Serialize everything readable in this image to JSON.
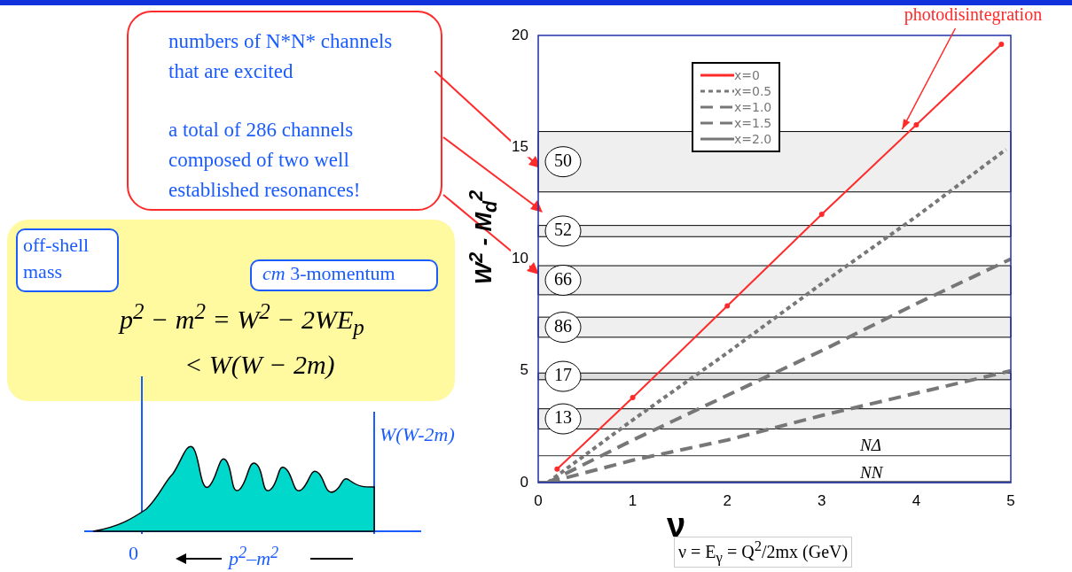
{
  "chart_data": {
    "type": "line",
    "xlabel": "ν = E$_{γ}$ = Q$^{2}$/2mx (GeV)",
    "ylabel": "W$^{2}$ - M$_{d}$$^{2}$",
    "xlim": [
      0,
      5
    ],
    "xticks": [
      0,
      1,
      2,
      3,
      4,
      5
    ],
    "ylim": [
      0,
      20
    ],
    "yticks": [
      0,
      5,
      10,
      15,
      20
    ],
    "grid": false,
    "legend": "top left",
    "marker": "none",
    "series": [
      {
        "name": "x=0",
        "color": "#ff2a2a",
        "line_style": "solid",
        "marker": "circle",
        "x": [
          0.2,
          1,
          2,
          3,
          4,
          4.9
        ],
        "values": [
          0.6,
          3.8,
          7.9,
          12,
          16,
          19.6
        ]
      },
      {
        "name": "x=0.5",
        "color": "#777777",
        "line_style": "dotted",
        "x": [
          0.1,
          1,
          2,
          3,
          4,
          4.95
        ],
        "values": [
          0,
          2.8,
          5.8,
          8.9,
          11.9,
          14.9
        ]
      },
      {
        "name": "x=1.0",
        "color": "#777777",
        "line_style": "dashed",
        "x": [
          0.1,
          1,
          2,
          3,
          4,
          5
        ],
        "values": [
          0,
          1.9,
          3.9,
          5.9,
          8,
          10
        ]
      },
      {
        "name": "x=1.5",
        "color": "#777777",
        "line_style": "dashed",
        "x": [
          0.1,
          1,
          2,
          3,
          4,
          5
        ],
        "values": [
          0,
          1,
          1.9,
          3,
          4,
          5
        ]
      },
      {
        "name": "x=2.0",
        "color": "#777777",
        "line_style": "solid",
        "x": [
          0,
          5
        ],
        "values": [
          0,
          0
        ]
      }
    ],
    "bands": [
      {
        "axis": "y",
        "from": 13,
        "to": 15.7,
        "label": "50",
        "color": "#efefef"
      },
      {
        "axis": "y",
        "from": 11,
        "to": 11.5,
        "label": "52",
        "color": "#efefef"
      },
      {
        "axis": "y",
        "from": 8.4,
        "to": 9.7,
        "label": "66",
        "color": "#efefef"
      },
      {
        "axis": "y",
        "from": 6.5,
        "to": 7.4,
        "label": "86",
        "color": "#efefef"
      },
      {
        "axis": "y",
        "from": 4.6,
        "to": 4.9,
        "label": "17",
        "color": "#dddddd"
      },
      {
        "axis": "y",
        "from": 2.4,
        "to": 3.3,
        "label": "13",
        "color": "#efefef"
      }
    ],
    "ref_lines": [
      {
        "axis": "y",
        "value": 1.2,
        "label": "NΔ",
        "color": "#333333"
      },
      {
        "axis": "y",
        "value": 0,
        "label": "NN",
        "color": "#333333"
      }
    ],
    "annotations": [
      "numbers of N*N* channels that are excited",
      "a total of 286 channels composed of two well established resonances!",
      "off-shell mass",
      "cm 3-momentum",
      "p$^{2}$ − m$^{2}$ = W$^{2}$ − 2WE$_{p}$",
      "< W(W − 2m)",
      "W(W-2m)",
      "0",
      "p$^{2}$–m$^{2}$",
      "ν",
      {
        "text": "photodisintegration",
        "x": 3.85,
        "y": 15.8
      }
    ]
  }
}
